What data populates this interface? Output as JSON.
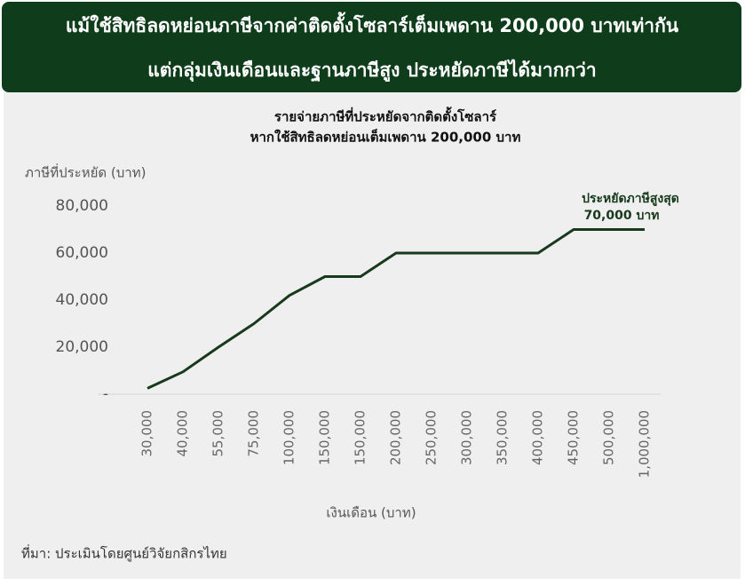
{
  "header": {
    "title_lines": [
      "แม้ใช้สิทธิลดหย่อนภาษีจากค่าติดตั้งโซลาร์เต็มเพดาน 200,000 บาทเท่ากัน",
      "แต่กลุ่มเงินเดือนและฐานภาษีสูง ประหยัดภาษีได้มากกว่า"
    ]
  },
  "chart_data": {
    "type": "line",
    "title": [
      "รายจ่ายภาษีที่ประหยัดจากติดตั้งโซลาร์",
      "หากใช้สิทธิลดหย่อนเต็มเพดาน 200,000 บาท"
    ],
    "y_label": "ภาษีที่ประหยัด (บาท)",
    "x_label": "เงินเดือน (บาท)",
    "categories": [
      "30,000",
      "40,000",
      "55,000",
      "75,000",
      "100,000",
      "150,000",
      "150,000",
      "200,000",
      "250,000",
      "300,000",
      "350,000",
      "400,000",
      "450,000",
      "500,000",
      "1,000,000"
    ],
    "values": [
      2500,
      9500,
      20000,
      30000,
      42000,
      50000,
      50000,
      60000,
      60000,
      60000,
      60000,
      60000,
      70000,
      70000,
      70000
    ],
    "color": "#17391c",
    "ylim": [
      0,
      80000
    ],
    "yticks": [
      {
        "value": 0,
        "label": "-"
      },
      {
        "value": 20000,
        "label": "20,000"
      },
      {
        "value": 40000,
        "label": "40,000"
      },
      {
        "value": 60000,
        "label": "60,000"
      },
      {
        "value": 80000,
        "label": "80,000"
      }
    ],
    "grid": false,
    "annotation": [
      "ประหยัดภาษีสูงสุด",
      "70,000 บาท"
    ]
  },
  "source": "ที่มา: ประเมินโดยศูนย์วิจัยกสิกรไทย"
}
